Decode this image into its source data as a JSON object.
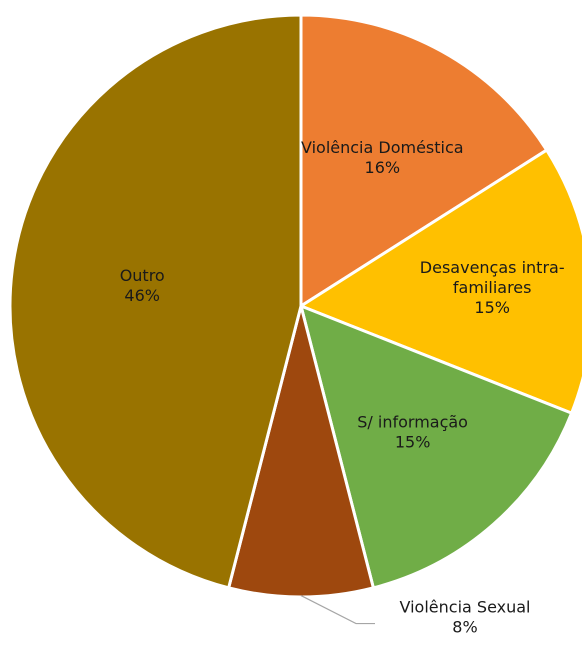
{
  "chart_data": {
    "type": "pie",
    "start_angle_deg": 0,
    "direction": "clockwise",
    "legend": "none",
    "slices": [
      {
        "label_lines": [
          "Violência Doméstica"
        ],
        "value_label": "16%",
        "value": 16,
        "color": "#ED7D31"
      },
      {
        "label_lines": [
          "Desavenças intra-",
          "familiares"
        ],
        "value_label": "15%",
        "value": 15,
        "color": "#FFC000"
      },
      {
        "label_lines": [
          "S/ informação"
        ],
        "value_label": "15%",
        "value": 15,
        "color": "#70AD47"
      },
      {
        "label_lines": [
          "Violência Sexual"
        ],
        "value_label": "8%",
        "value": 8,
        "color": "#9E480E"
      },
      {
        "label_lines": [
          "Outro"
        ],
        "value_label": "46%",
        "value": 46,
        "color": "#997300"
      }
    ]
  }
}
